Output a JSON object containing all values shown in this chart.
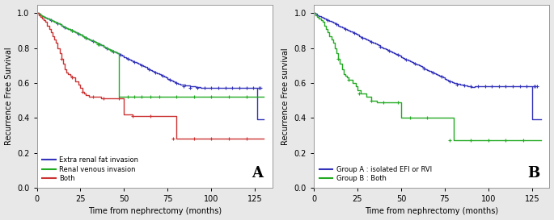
{
  "panel_A": {
    "title": "A",
    "xlabel": "Time from nephrectomy (months)",
    "ylabel": "Recurrence Free Survival",
    "xlim": [
      0,
      135
    ],
    "ylim": [
      0.0,
      1.05
    ],
    "yticks": [
      0.0,
      0.2,
      0.4,
      0.6,
      0.8,
      1.0
    ],
    "xticks": [
      0,
      25,
      50,
      75,
      100,
      125
    ],
    "series": [
      {
        "label": "Extra renal fat invasion",
        "color": "#3333bb",
        "steps_x": [
          0,
          1,
          2,
          3,
          4,
          5,
          6,
          7,
          8,
          9,
          10,
          11,
          12,
          13,
          14,
          15,
          16,
          17,
          18,
          19,
          20,
          21,
          22,
          23,
          24,
          25,
          26,
          27,
          28,
          29,
          30,
          31,
          32,
          33,
          34,
          35,
          36,
          37,
          38,
          39,
          40,
          41,
          42,
          43,
          44,
          45,
          46,
          47,
          48,
          49,
          50,
          51,
          52,
          53,
          54,
          55,
          56,
          57,
          58,
          59,
          60,
          61,
          62,
          63,
          64,
          65,
          66,
          67,
          68,
          69,
          70,
          71,
          72,
          73,
          74,
          75,
          76,
          77,
          78,
          79,
          80,
          81,
          82,
          85,
          88,
          91,
          94,
          97,
          100,
          103,
          106,
          109,
          112,
          115,
          118,
          121,
          124,
          125,
          126,
          127,
          128,
          130
        ],
        "steps_y": [
          1.0,
          0.995,
          0.99,
          0.985,
          0.98,
          0.975,
          0.97,
          0.965,
          0.96,
          0.955,
          0.95,
          0.945,
          0.94,
          0.935,
          0.93,
          0.925,
          0.92,
          0.915,
          0.91,
          0.905,
          0.9,
          0.895,
          0.89,
          0.885,
          0.88,
          0.875,
          0.87,
          0.865,
          0.86,
          0.855,
          0.85,
          0.845,
          0.84,
          0.835,
          0.83,
          0.825,
          0.82,
          0.815,
          0.81,
          0.805,
          0.8,
          0.795,
          0.79,
          0.785,
          0.78,
          0.775,
          0.77,
          0.765,
          0.76,
          0.755,
          0.75,
          0.745,
          0.74,
          0.735,
          0.73,
          0.725,
          0.72,
          0.715,
          0.71,
          0.705,
          0.7,
          0.695,
          0.69,
          0.685,
          0.68,
          0.675,
          0.67,
          0.665,
          0.66,
          0.655,
          0.65,
          0.645,
          0.64,
          0.635,
          0.63,
          0.625,
          0.62,
          0.615,
          0.61,
          0.605,
          0.6,
          0.595,
          0.59,
          0.585,
          0.58,
          0.575,
          0.57,
          0.57,
          0.57,
          0.57,
          0.57,
          0.57,
          0.57,
          0.57,
          0.57,
          0.57,
          0.57,
          0.57,
          0.39,
          0.39,
          0.39,
          0.39
        ],
        "censor_x": [
          8,
          12,
          16,
          20,
          24,
          28,
          32,
          36,
          40,
          44,
          48,
          52,
          56,
          60,
          64,
          68,
          72,
          76,
          80,
          84,
          88,
          92,
          96,
          100,
          104,
          108,
          112,
          116,
          120,
          124,
          127,
          128
        ],
        "censor_y": [
          0.96,
          0.94,
          0.92,
          0.9,
          0.88,
          0.86,
          0.84,
          0.82,
          0.8,
          0.78,
          0.76,
          0.74,
          0.72,
          0.7,
          0.68,
          0.66,
          0.64,
          0.62,
          0.6,
          0.58,
          0.57,
          0.57,
          0.57,
          0.57,
          0.57,
          0.57,
          0.57,
          0.57,
          0.57,
          0.57,
          0.57,
          0.57
        ]
      },
      {
        "label": "Renal venous invasion",
        "color": "#22aa22",
        "steps_x": [
          0,
          1,
          2,
          3,
          4,
          5,
          6,
          7,
          8,
          9,
          10,
          11,
          12,
          13,
          14,
          15,
          16,
          17,
          18,
          19,
          20,
          21,
          22,
          23,
          24,
          25,
          26,
          27,
          28,
          29,
          30,
          31,
          32,
          33,
          34,
          35,
          36,
          37,
          38,
          39,
          40,
          41,
          42,
          43,
          44,
          45,
          46,
          47,
          48,
          52,
          56,
          60,
          65,
          70,
          80,
          90,
          100,
          110,
          120,
          130
        ],
        "steps_y": [
          1.0,
          0.995,
          0.99,
          0.985,
          0.98,
          0.975,
          0.97,
          0.965,
          0.96,
          0.955,
          0.95,
          0.945,
          0.94,
          0.935,
          0.93,
          0.925,
          0.92,
          0.915,
          0.91,
          0.905,
          0.9,
          0.895,
          0.89,
          0.885,
          0.88,
          0.875,
          0.87,
          0.865,
          0.86,
          0.855,
          0.85,
          0.845,
          0.84,
          0.835,
          0.83,
          0.825,
          0.82,
          0.815,
          0.81,
          0.805,
          0.8,
          0.795,
          0.79,
          0.785,
          0.78,
          0.775,
          0.77,
          0.52,
          0.52,
          0.52,
          0.52,
          0.52,
          0.52,
          0.52,
          0.52,
          0.52,
          0.52,
          0.52,
          0.52,
          0.52
        ],
        "censor_x": [
          20,
          28,
          35,
          43,
          52,
          56,
          60,
          65,
          70,
          80,
          90,
          100,
          110,
          120
        ],
        "censor_y": [
          0.9,
          0.86,
          0.82,
          0.785,
          0.52,
          0.52,
          0.52,
          0.52,
          0.52,
          0.52,
          0.52,
          0.52,
          0.52,
          0.52
        ]
      },
      {
        "label": "Both",
        "color": "#cc3333",
        "steps_x": [
          0,
          1,
          2,
          3,
          4,
          5,
          6,
          7,
          8,
          9,
          10,
          11,
          12,
          13,
          14,
          15,
          16,
          17,
          18,
          19,
          20,
          22,
          24,
          25,
          26,
          27,
          28,
          30,
          32,
          35,
          37,
          40,
          43,
          47,
          50,
          55,
          60,
          65,
          70,
          75,
          80,
          85,
          90,
          100,
          110,
          120,
          130
        ],
        "steps_y": [
          1.0,
          0.99,
          0.98,
          0.97,
          0.96,
          0.95,
          0.93,
          0.91,
          0.89,
          0.87,
          0.85,
          0.83,
          0.8,
          0.77,
          0.74,
          0.71,
          0.68,
          0.66,
          0.65,
          0.64,
          0.63,
          0.61,
          0.59,
          0.57,
          0.55,
          0.54,
          0.53,
          0.52,
          0.52,
          0.52,
          0.51,
          0.51,
          0.51,
          0.51,
          0.42,
          0.41,
          0.41,
          0.41,
          0.41,
          0.41,
          0.28,
          0.28,
          0.28,
          0.28,
          0.28,
          0.28,
          0.28
        ],
        "censor_x": [
          14,
          20,
          26,
          32,
          38,
          47,
          55,
          65,
          78,
          90,
          100,
          110,
          120
        ],
        "censor_y": [
          0.74,
          0.63,
          0.55,
          0.52,
          0.51,
          0.51,
          0.41,
          0.41,
          0.28,
          0.28,
          0.28,
          0.28,
          0.28
        ]
      }
    ],
    "legend_entries": [
      "Extra renal fat invasion",
      "Renal venous invasion",
      "Both"
    ],
    "legend_colors": [
      "#3333bb",
      "#22aa22",
      "#cc3333"
    ]
  },
  "panel_B": {
    "title": "B",
    "xlabel": "Time from nephrectomy (months)",
    "ylabel": "Recurrence Free survival",
    "xlim": [
      0,
      135
    ],
    "ylim": [
      0.0,
      1.05
    ],
    "yticks": [
      0.0,
      0.2,
      0.4,
      0.6,
      0.8,
      1.0
    ],
    "xticks": [
      0,
      25,
      50,
      75,
      100,
      125
    ],
    "series": [
      {
        "label": "Group A : isolated EFI or RVI",
        "color": "#3333bb",
        "steps_x": [
          0,
          1,
          2,
          3,
          4,
          5,
          6,
          7,
          8,
          9,
          10,
          11,
          12,
          13,
          14,
          15,
          16,
          17,
          18,
          19,
          20,
          21,
          22,
          23,
          24,
          25,
          26,
          27,
          28,
          29,
          30,
          31,
          32,
          33,
          34,
          35,
          36,
          37,
          38,
          39,
          40,
          41,
          42,
          43,
          44,
          45,
          46,
          47,
          48,
          49,
          50,
          51,
          52,
          53,
          54,
          55,
          56,
          57,
          58,
          59,
          60,
          61,
          62,
          63,
          64,
          65,
          66,
          67,
          68,
          69,
          70,
          71,
          72,
          73,
          74,
          75,
          76,
          77,
          78,
          79,
          80,
          82,
          84,
          86,
          88,
          90,
          92,
          94,
          96,
          98,
          100,
          102,
          104,
          106,
          108,
          110,
          112,
          114,
          116,
          118,
          120,
          122,
          124,
          125,
          126,
          127,
          128,
          130
        ],
        "steps_y": [
          1.0,
          0.995,
          0.99,
          0.985,
          0.98,
          0.975,
          0.97,
          0.965,
          0.96,
          0.955,
          0.95,
          0.945,
          0.94,
          0.935,
          0.93,
          0.925,
          0.92,
          0.915,
          0.91,
          0.905,
          0.9,
          0.895,
          0.89,
          0.885,
          0.88,
          0.875,
          0.87,
          0.865,
          0.86,
          0.855,
          0.85,
          0.845,
          0.84,
          0.835,
          0.83,
          0.825,
          0.82,
          0.815,
          0.81,
          0.805,
          0.8,
          0.795,
          0.79,
          0.785,
          0.78,
          0.775,
          0.77,
          0.765,
          0.76,
          0.755,
          0.75,
          0.745,
          0.74,
          0.735,
          0.73,
          0.725,
          0.72,
          0.715,
          0.71,
          0.705,
          0.7,
          0.695,
          0.69,
          0.685,
          0.68,
          0.675,
          0.67,
          0.665,
          0.66,
          0.655,
          0.65,
          0.645,
          0.64,
          0.635,
          0.63,
          0.625,
          0.62,
          0.615,
          0.61,
          0.605,
          0.6,
          0.595,
          0.59,
          0.585,
          0.58,
          0.575,
          0.58,
          0.58,
          0.58,
          0.58,
          0.58,
          0.58,
          0.58,
          0.58,
          0.58,
          0.58,
          0.58,
          0.58,
          0.58,
          0.58,
          0.58,
          0.58,
          0.58,
          0.39,
          0.39,
          0.39,
          0.39,
          0.39
        ],
        "censor_x": [
          8,
          13,
          18,
          23,
          28,
          33,
          38,
          43,
          48,
          53,
          58,
          63,
          68,
          73,
          78,
          82,
          86,
          90,
          94,
          98,
          102,
          106,
          110,
          114,
          118,
          122,
          126,
          127,
          128
        ],
        "censor_y": [
          0.96,
          0.935,
          0.91,
          0.885,
          0.86,
          0.835,
          0.81,
          0.785,
          0.76,
          0.735,
          0.71,
          0.685,
          0.66,
          0.635,
          0.61,
          0.59,
          0.585,
          0.58,
          0.58,
          0.58,
          0.58,
          0.58,
          0.58,
          0.58,
          0.58,
          0.58,
          0.58,
          0.58,
          0.58
        ]
      },
      {
        "label": "Group B : Both",
        "color": "#22aa22",
        "steps_x": [
          0,
          1,
          2,
          3,
          4,
          5,
          6,
          7,
          8,
          9,
          10,
          11,
          12,
          13,
          14,
          15,
          16,
          17,
          18,
          19,
          20,
          22,
          24,
          25,
          27,
          30,
          33,
          36,
          39,
          42,
          45,
          48,
          50,
          55,
          60,
          65,
          70,
          75,
          80,
          85,
          90,
          100,
          110,
          120,
          130
        ],
        "steps_y": [
          1.0,
          0.99,
          0.98,
          0.97,
          0.96,
          0.95,
          0.93,
          0.91,
          0.89,
          0.87,
          0.85,
          0.83,
          0.8,
          0.77,
          0.74,
          0.71,
          0.68,
          0.65,
          0.64,
          0.63,
          0.62,
          0.6,
          0.58,
          0.56,
          0.54,
          0.52,
          0.5,
          0.49,
          0.49,
          0.49,
          0.49,
          0.49,
          0.4,
          0.4,
          0.4,
          0.4,
          0.4,
          0.4,
          0.27,
          0.27,
          0.27,
          0.27,
          0.27,
          0.27,
          0.27
        ],
        "censor_x": [
          14,
          20,
          26,
          33,
          40,
          48,
          55,
          65,
          78,
          90,
          100,
          110,
          120
        ],
        "censor_y": [
          0.74,
          0.62,
          0.54,
          0.5,
          0.49,
          0.49,
          0.4,
          0.4,
          0.27,
          0.27,
          0.27,
          0.27,
          0.27
        ]
      }
    ],
    "legend_entries": [
      "Group A : isolated EFI or RVI",
      "Group B : Both"
    ],
    "legend_colors": [
      "#3333bb",
      "#22aa22"
    ]
  },
  "bg_color": "#e8e8e8",
  "plot_bg_color": "#ffffff"
}
